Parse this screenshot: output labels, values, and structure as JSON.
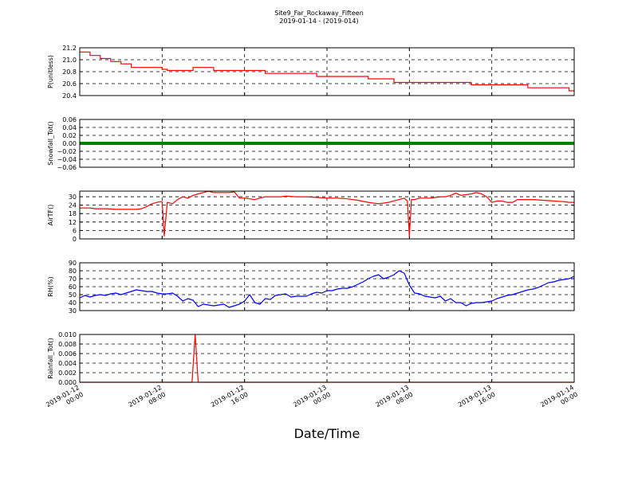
{
  "figure": {
    "title_line1": "Site9_Far_Rockaway_Fifteen",
    "title_line2": "2019-01-14 - (2019-014)",
    "xlabel": "Date/Time",
    "x_ticks": [
      {
        "l1": "2019-01-12",
        "l2": "00:00",
        "t": 0
      },
      {
        "l1": "2019-01-12",
        "l2": "08:00",
        "t": 8
      },
      {
        "l1": "2019-01-12",
        "l2": "16:00",
        "t": 16
      },
      {
        "l1": "2019-01-13",
        "l2": "00:00",
        "t": 24
      },
      {
        "l1": "2019-01-13",
        "l2": "08:00",
        "t": 32
      },
      {
        "l1": "2019-01-13",
        "l2": "16:00",
        "t": 40
      },
      {
        "l1": "2019-01-14",
        "l2": "00:00",
        "t": 48
      }
    ]
  },
  "chart_data": [
    {
      "type": "line",
      "ylabel": "P(unitless)",
      "ylim": [
        20.4,
        21.2
      ],
      "yticks": [
        "20.4",
        "20.6",
        "20.8",
        "21.0",
        "21.2"
      ],
      "color": "#ff0000",
      "grid": true,
      "series": [
        {
          "x": [
            0,
            1.0,
            1.0,
            2.0,
            2.0,
            3.0,
            3.0,
            4.0,
            4.0,
            5.0,
            5.0,
            8.0,
            8.0,
            8.5,
            8.5,
            11.0,
            11.0,
            13.0,
            13.0,
            18.0,
            18.0,
            23.0,
            23.0,
            28.0,
            28.0,
            30.5,
            30.5,
            38.0,
            38.0,
            42.5,
            42.5,
            43.5,
            43.5,
            47.5,
            47.5,
            48
          ],
          "values": [
            21.13,
            21.13,
            21.07,
            21.07,
            21.02,
            21.02,
            20.97,
            20.97,
            20.93,
            20.93,
            20.87,
            20.87,
            20.84,
            20.84,
            20.82,
            20.82,
            20.87,
            20.87,
            20.82,
            20.82,
            20.77,
            20.77,
            20.72,
            20.72,
            20.68,
            20.68,
            20.62,
            20.62,
            20.58,
            20.58,
            20.58,
            20.58,
            20.53,
            20.53,
            20.48,
            20.48
          ]
        }
      ]
    },
    {
      "type": "line",
      "ylabel": "Snowfall_Tot()",
      "ylim": [
        -0.06,
        0.06
      ],
      "yticks": [
        "−0.06",
        "−0.04",
        "−0.02",
        "0.00",
        "0.02",
        "0.04",
        "0.06"
      ],
      "color": "#008000",
      "grid": true,
      "series": [
        {
          "x": [
            0,
            48
          ],
          "values": [
            0,
            0
          ]
        }
      ]
    },
    {
      "type": "line",
      "ylabel": "AirTF()",
      "ylim": [
        0,
        34
      ],
      "yticks": [
        "0",
        "6",
        "12",
        "18",
        "24",
        "30"
      ],
      "color": "#ff0000",
      "grid": true,
      "series": [
        {
          "x": [
            0,
            0.5,
            1,
            1.5,
            2,
            2.5,
            3,
            3.5,
            4,
            4.5,
            5,
            5.5,
            6,
            6.5,
            7,
            7.5,
            7.8,
            8.0,
            8.2,
            8.5,
            9,
            9.5,
            10,
            10.5,
            11,
            11.5,
            12,
            12.5,
            13,
            13.5,
            14,
            14.5,
            15,
            15.5,
            16,
            16.5,
            17,
            17.5,
            18,
            18.5,
            19,
            19.5,
            20,
            21,
            22,
            23,
            24,
            25,
            26,
            27,
            28,
            29,
            30,
            31,
            31.5,
            31.8,
            32.0,
            32.2,
            32.5,
            33,
            34,
            35,
            35.5,
            36,
            36.5,
            37,
            38,
            38.5,
            39,
            39.5,
            40,
            40.5,
            41,
            41.5,
            42,
            42.5,
            43,
            43.5,
            44,
            45,
            46,
            47,
            47.5,
            48
          ],
          "values": [
            22,
            22,
            22,
            21.5,
            21.5,
            21.5,
            21.3,
            21,
            21,
            21,
            21,
            21,
            21.5,
            23,
            25,
            26,
            26.5,
            26.5,
            2,
            26,
            25,
            28,
            30,
            29,
            31,
            32,
            33,
            34,
            33,
            33,
            33,
            33,
            33.5,
            29,
            29,
            28.5,
            28,
            29,
            30,
            30,
            30,
            30,
            30.5,
            30,
            30,
            29.5,
            29,
            29,
            28.5,
            27.5,
            26,
            25,
            26,
            28,
            29,
            27,
            2,
            28,
            28,
            29,
            29,
            30,
            30,
            31,
            32.5,
            31,
            32,
            33,
            32,
            30,
            26,
            27,
            27,
            26,
            26,
            28,
            28,
            28,
            28,
            27.5,
            27,
            26.5,
            26,
            26
          ]
        }
      ]
    },
    {
      "type": "line",
      "ylabel": "RH(%)",
      "ylim": [
        30,
        90
      ],
      "yticks": [
        "30",
        "40",
        "50",
        "60",
        "70",
        "80",
        "90"
      ],
      "color": "#0000ff",
      "grid": true,
      "series": [
        {
          "x": [
            0,
            0.5,
            1,
            1.5,
            2,
            2.5,
            3,
            3.5,
            4,
            4.5,
            5,
            5.5,
            6,
            6.5,
            7,
            7.5,
            8,
            8.5,
            9,
            9.5,
            10,
            10.5,
            11,
            11.5,
            12,
            12.5,
            13,
            13.5,
            14,
            14.5,
            15,
            15.5,
            16,
            16.5,
            17,
            17.5,
            18,
            18.5,
            19,
            19.5,
            20,
            20.5,
            21,
            21.5,
            22,
            22.5,
            23,
            23.5,
            24,
            24.5,
            25,
            25.5,
            26,
            26.5,
            27,
            27.5,
            28,
            28.5,
            29,
            29.5,
            30,
            30.5,
            31,
            31.5,
            32,
            32.5,
            33,
            33.5,
            34,
            34.5,
            35,
            35.5,
            36,
            36.5,
            37,
            37.5,
            38,
            38.5,
            39,
            39.5,
            40,
            40.5,
            41,
            41.5,
            42,
            42.5,
            43,
            43.5,
            44,
            44.5,
            45,
            45.5,
            46,
            46.5,
            47,
            47.5,
            48
          ],
          "values": [
            46,
            49,
            47,
            49,
            50,
            49,
            51,
            52,
            50,
            52,
            54,
            56,
            55,
            54,
            54,
            52,
            51,
            51,
            52,
            48,
            42,
            45,
            43,
            35,
            38,
            37,
            36,
            37,
            38,
            34,
            36,
            38,
            42,
            50,
            40,
            38,
            45,
            44,
            49,
            50,
            51,
            47,
            48,
            48,
            48,
            51,
            53,
            52,
            55,
            55,
            57,
            58,
            58,
            60,
            63,
            66,
            70,
            73,
            75,
            70,
            72,
            75,
            80,
            77,
            62,
            52,
            51,
            48,
            47,
            46,
            48,
            42,
            45,
            40,
            40,
            36,
            39,
            40,
            40,
            41,
            42,
            45,
            47,
            49,
            50,
            52,
            54,
            56,
            57,
            59,
            62,
            65,
            66,
            68,
            69,
            70,
            73
          ]
        }
      ]
    },
    {
      "type": "line",
      "ylabel": "Rainfall_Tot()",
      "ylim": [
        0,
        0.01
      ],
      "yticks": [
        "0.000",
        "0.002",
        "0.004",
        "0.006",
        "0.008",
        "0.010"
      ],
      "color": "#ff0000",
      "grid": true,
      "series": [
        {
          "x": [
            0,
            10.9,
            11.2,
            11.5,
            48
          ],
          "values": [
            0,
            0,
            0.01,
            0,
            0
          ]
        }
      ]
    }
  ]
}
